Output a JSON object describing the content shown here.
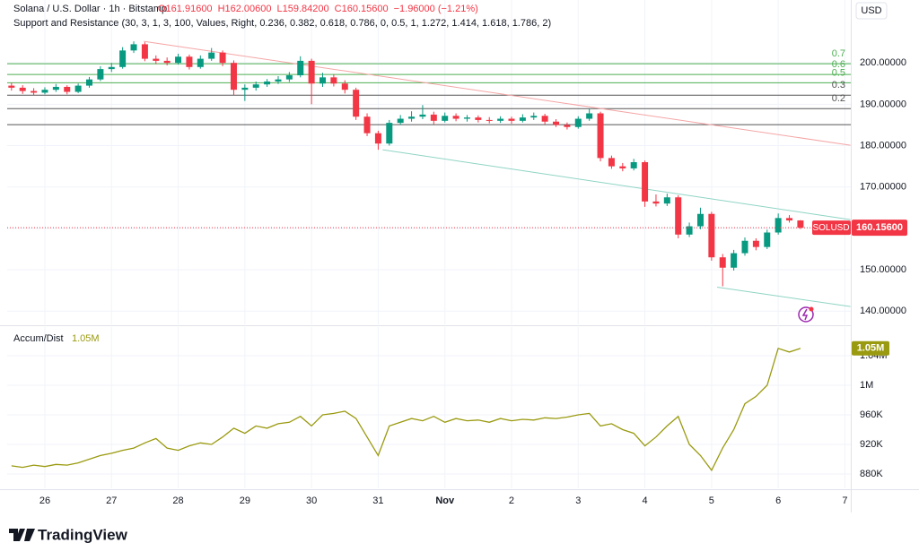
{
  "header": {
    "symbol": "Solana / U.S. Dollar · 1h · Bitstamp",
    "ohlc": [
      "O161.91600",
      "H162.00600",
      "L159.84200",
      "C160.15600"
    ],
    "change": "−1.96000 (−1.21%)",
    "indicator": "Support and Resistance (30, 3, 1, 3, 100, Values, Right, 0.236, 0.382, 0.618, 0.786, 0, 0.5, 1, 1.272, 1.414, 1.618, 1.786, 2)",
    "currency": "USD",
    "ticker": "SOLUSD",
    "last_price_label": "160.15600"
  },
  "logo": "TradingView",
  "chart_data": [
    {
      "type": "candlestick",
      "name": "SOLUSD",
      "up_color": "#089981",
      "down_color": "#f23645",
      "grid": true,
      "xlim": [
        -0.39,
        75.53
      ],
      "xticks": [
        {
          "value": 3,
          "label": "26"
        },
        {
          "value": 9,
          "label": "27"
        },
        {
          "value": 15,
          "label": "28"
        },
        {
          "value": 21,
          "label": "29"
        },
        {
          "value": 27,
          "label": "30"
        },
        {
          "value": 33,
          "label": "31"
        },
        {
          "value": 39,
          "label": "Nov"
        },
        {
          "value": 45,
          "label": "2"
        },
        {
          "value": 51,
          "label": "3"
        },
        {
          "value": 57,
          "label": "4"
        },
        {
          "value": 63,
          "label": "5"
        },
        {
          "value": 69,
          "label": "6"
        },
        {
          "value": 75,
          "label": "7"
        }
      ],
      "ylim": [
        136.8,
        215.2
      ],
      "yticks": [
        {
          "value": 140,
          "label": "140.00000"
        },
        {
          "value": 150,
          "label": "150.00000"
        },
        {
          "value": 160,
          "label": "160.00000"
        },
        {
          "value": 170,
          "label": "170.00000"
        },
        {
          "value": 180,
          "label": "180.00000"
        },
        {
          "value": 190,
          "label": "190.00000"
        },
        {
          "value": 200,
          "label": "200.00000"
        }
      ],
      "ohlc": [
        [
          194.5,
          195.2,
          193.3,
          194.0
        ],
        [
          194.0,
          194.6,
          192.5,
          193.2
        ],
        [
          193.2,
          193.9,
          192.1,
          192.8
        ],
        [
          192.8,
          194.1,
          192.4,
          193.5
        ],
        [
          193.5,
          194.9,
          193.0,
          194.2
        ],
        [
          194.2,
          194.6,
          192.4,
          193.0
        ],
        [
          193.0,
          195.0,
          192.7,
          194.5
        ],
        [
          194.5,
          196.6,
          194.0,
          196.0
        ],
        [
          196.0,
          199.2,
          195.6,
          198.5
        ],
        [
          198.5,
          200.0,
          197.8,
          199.0
        ],
        [
          199.0,
          203.8,
          198.6,
          203.0
        ],
        [
          203.0,
          205.2,
          202.4,
          204.5
        ],
        [
          204.5,
          205.0,
          200.4,
          201.0
        ],
        [
          201.0,
          201.8,
          199.7,
          200.5
        ],
        [
          200.5,
          201.3,
          199.4,
          200.0
        ],
        [
          200.0,
          202.2,
          199.6,
          201.5
        ],
        [
          201.5,
          202.0,
          198.4,
          199.0
        ],
        [
          199.0,
          201.8,
          198.6,
          201.0
        ],
        [
          201.0,
          203.6,
          200.5,
          202.5
        ],
        [
          202.5,
          203.0,
          199.2,
          200.0
        ],
        [
          200.0,
          200.6,
          192.2,
          193.5
        ],
        [
          193.5,
          194.8,
          190.8,
          194.0
        ],
        [
          194.0,
          195.5,
          193.3,
          194.8
        ],
        [
          194.8,
          196.1,
          194.2,
          195.5
        ],
        [
          195.5,
          196.8,
          194.9,
          196.0
        ],
        [
          196.0,
          197.8,
          195.4,
          197.0
        ],
        [
          197.0,
          201.6,
          196.5,
          200.5
        ],
        [
          200.5,
          201.0,
          190.0,
          195.0
        ],
        [
          195.0,
          197.6,
          194.2,
          196.5
        ],
        [
          196.5,
          197.2,
          194.3,
          195.0
        ],
        [
          195.0,
          195.8,
          192.6,
          193.5
        ],
        [
          193.5,
          194.0,
          186.2,
          187.0
        ],
        [
          187.0,
          187.8,
          182.3,
          183.0
        ],
        [
          183.0,
          183.6,
          179.0,
          180.5
        ],
        [
          180.5,
          186.2,
          180.0,
          185.5
        ],
        [
          185.5,
          187.4,
          185.0,
          186.5
        ],
        [
          186.5,
          188.3,
          185.8,
          187.0
        ],
        [
          187.0,
          189.8,
          186.4,
          187.5
        ],
        [
          187.5,
          188.2,
          185.2,
          186.0
        ],
        [
          186.0,
          188.0,
          185.6,
          187.2
        ],
        [
          187.2,
          187.8,
          185.9,
          186.5
        ],
        [
          186.5,
          187.4,
          185.8,
          186.8
        ],
        [
          186.8,
          187.3,
          185.6,
          186.2
        ],
        [
          186.2,
          186.9,
          185.4,
          186.0
        ],
        [
          186.0,
          187.1,
          185.5,
          186.5
        ],
        [
          186.5,
          187.0,
          185.3,
          186.0
        ],
        [
          186.0,
          187.6,
          185.6,
          186.8
        ],
        [
          186.8,
          188.0,
          186.2,
          187.2
        ],
        [
          187.2,
          187.7,
          185.2,
          185.8
        ],
        [
          185.8,
          186.4,
          184.5,
          185.0
        ],
        [
          185.0,
          185.6,
          183.9,
          184.5
        ],
        [
          184.5,
          187.1,
          184.1,
          186.5
        ],
        [
          186.5,
          189.0,
          186.0,
          187.8
        ],
        [
          187.8,
          188.2,
          176.2,
          177.0
        ],
        [
          177.0,
          177.6,
          174.4,
          175.0
        ],
        [
          175.0,
          175.8,
          173.8,
          174.5
        ],
        [
          174.5,
          176.8,
          174.0,
          176.0
        ],
        [
          176.0,
          176.4,
          165.2,
          166.5
        ],
        [
          166.5,
          168.2,
          165.3,
          166.0
        ],
        [
          166.0,
          168.4,
          165.4,
          167.5
        ],
        [
          167.5,
          168.0,
          157.6,
          158.5
        ],
        [
          158.5,
          161.4,
          157.9,
          160.5
        ],
        [
          160.5,
          165.0,
          159.8,
          163.5
        ],
        [
          163.5,
          164.0,
          152.2,
          153.0
        ],
        [
          153.0,
          153.8,
          146.0,
          150.5
        ],
        [
          150.5,
          154.8,
          149.8,
          154.0
        ],
        [
          154.0,
          157.8,
          153.4,
          157.0
        ],
        [
          157.0,
          157.6,
          154.7,
          155.5
        ],
        [
          155.5,
          159.7,
          155.0,
          159.0
        ],
        [
          159.0,
          163.6,
          158.5,
          162.5
        ],
        [
          162.5,
          163.2,
          161.4,
          161.916
        ],
        [
          161.916,
          162.006,
          159.842,
          160.156
        ]
      ],
      "levels": [
        {
          "label": "0.7",
          "price": 199.8,
          "color": "#4caf50"
        },
        {
          "label": "0.6",
          "price": 197.2,
          "color": "#4caf50"
        },
        {
          "label": "0.5",
          "price": 195.2,
          "color": "#4caf50"
        },
        {
          "label": "0.3",
          "price": 192.2,
          "color": "#555555"
        },
        {
          "label": "0.2",
          "price": 188.95,
          "color": "#555555"
        },
        {
          "label": null,
          "price": 185.06,
          "color": "#555555"
        }
      ],
      "trendlines": [
        {
          "color": "#f5a5a5",
          "x": [
            11.9,
            75.5
          ],
          "y": [
            205.2,
            180.1
          ]
        },
        {
          "color": "#8fd4c4",
          "x": [
            33.4,
            75.5
          ],
          "y": [
            179.0,
            162.1
          ]
        },
        {
          "color": "#8fd4c4",
          "x": [
            63.5,
            75.5
          ],
          "y": [
            145.8,
            141.1
          ]
        }
      ]
    },
    {
      "type": "line",
      "name": "Accum/Dist",
      "legend_value": "1.05M",
      "color": "#9a9a10",
      "value_label": "1.05M",
      "ylim": [
        860600,
        1078800
      ],
      "yticks": [
        {
          "value": 880000,
          "label": "880K"
        },
        {
          "value": 920000,
          "label": "920K"
        },
        {
          "value": 960000,
          "label": "960K"
        },
        {
          "value": 1000000,
          "label": "1M"
        },
        {
          "value": 1040000,
          "label": "1.04M"
        }
      ],
      "values": [
        891000,
        889000,
        892000,
        890000,
        893000,
        892000,
        895000,
        900000,
        905000,
        908000,
        912000,
        915000,
        922000,
        928000,
        915000,
        912000,
        918000,
        922000,
        920000,
        930000,
        942000,
        935000,
        945000,
        942000,
        948000,
        950000,
        958000,
        945000,
        960000,
        962000,
        965000,
        955000,
        930000,
        905000,
        945000,
        950000,
        955000,
        952000,
        958000,
        950000,
        955000,
        952000,
        953000,
        950000,
        955000,
        952000,
        954000,
        953000,
        956000,
        955000,
        957000,
        960000,
        962000,
        945000,
        948000,
        940000,
        935000,
        918000,
        930000,
        945000,
        958000,
        920000,
        905000,
        885000,
        915000,
        940000,
        975000,
        985000,
        1000000,
        1050000,
        1045000,
        1050000
      ]
    }
  ]
}
